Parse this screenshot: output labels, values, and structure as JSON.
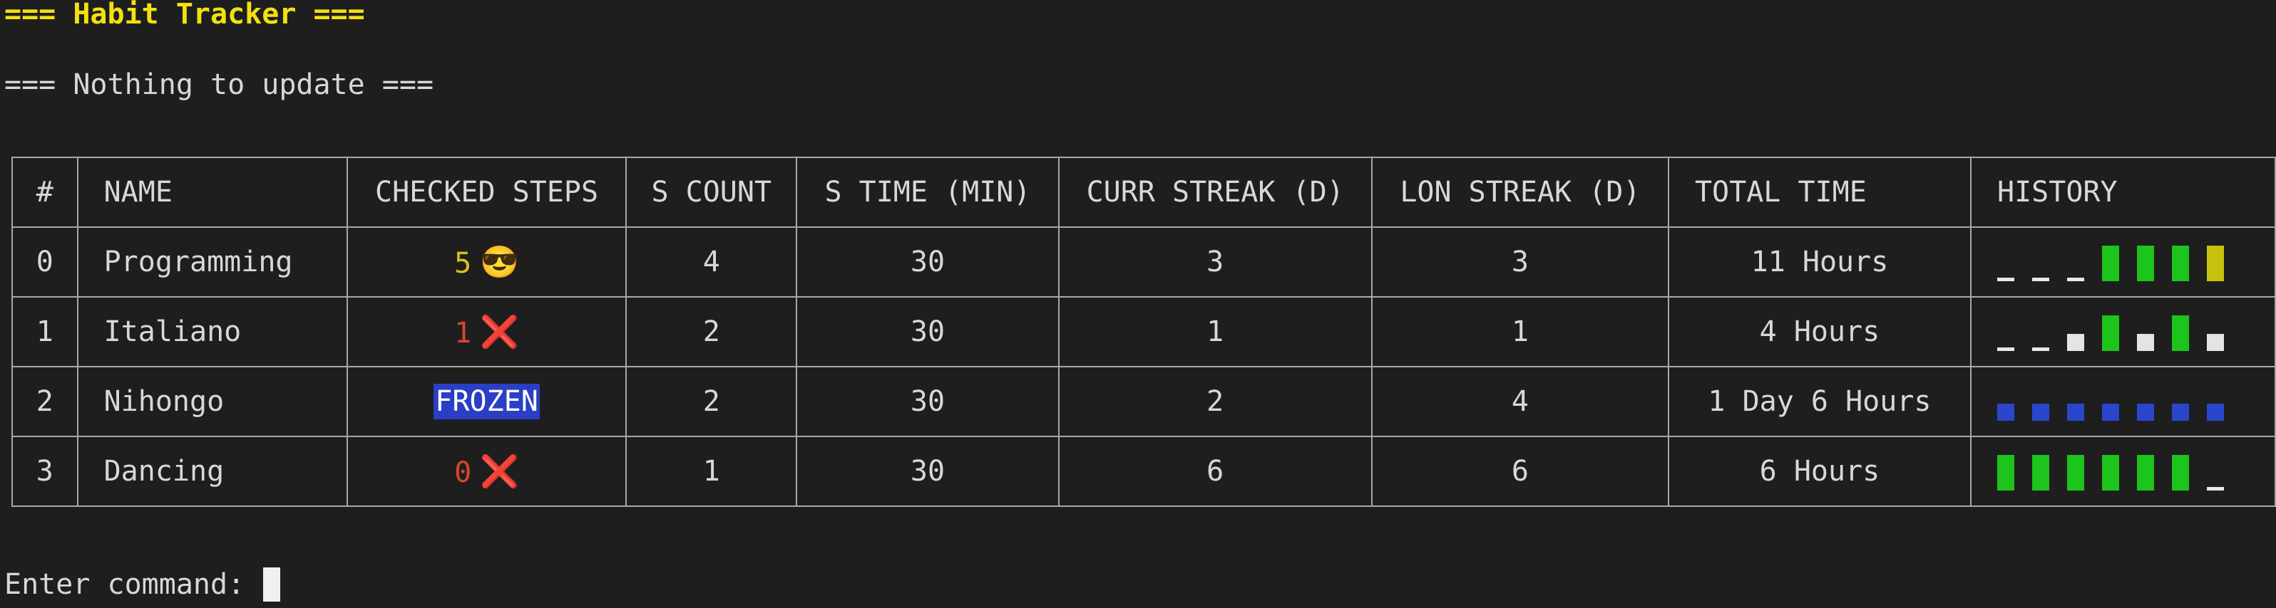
{
  "header": {
    "title": "=== Habit Tracker ===",
    "message": "=== Nothing to update ==="
  },
  "table": {
    "columns": [
      "#",
      "NAME",
      "CHECKED STEPS",
      "S COUNT",
      "S TIME (MIN)",
      "CURR STREAK (D)",
      "LON STREAK (D)",
      "TOTAL TIME",
      "HISTORY"
    ],
    "rows": [
      {
        "index": "0",
        "name": "Programming",
        "checked_steps": "5",
        "status_icon": "sunglasses-emoji",
        "status_glyph": "😎",
        "step_count": "4",
        "step_time": "30",
        "curr_streak": "3",
        "lon_streak": "3",
        "total_time": "11 Hours",
        "history": [
          "none",
          "none",
          "none",
          "done",
          "done",
          "done",
          "partial"
        ]
      },
      {
        "index": "1",
        "name": "Italiano",
        "checked_steps": "1",
        "status_icon": "cross-mark-emoji",
        "status_glyph": "❌",
        "step_count": "2",
        "step_time": "30",
        "curr_streak": "1",
        "lon_streak": "1",
        "total_time": "4 Hours",
        "history": [
          "none",
          "none",
          "missed",
          "done",
          "missed",
          "done",
          "missed"
        ]
      },
      {
        "index": "2",
        "name": "Nihongo",
        "checked_steps": "FROZEN",
        "step_count": "2",
        "step_time": "30",
        "curr_streak": "2",
        "lon_streak": "4",
        "total_time": "1 Day 6 Hours",
        "history": [
          "frozen",
          "frozen",
          "frozen",
          "frozen",
          "frozen",
          "frozen",
          "frozen"
        ]
      },
      {
        "index": "3",
        "name": "Dancing",
        "checked_steps": "0",
        "status_icon": "cross-mark-emoji",
        "status_glyph": "❌",
        "step_count": "1",
        "step_time": "30",
        "curr_streak": "6",
        "lon_streak": "6",
        "total_time": "6 Hours",
        "history": [
          "done",
          "done",
          "done",
          "done",
          "done",
          "done",
          "none"
        ]
      }
    ]
  },
  "prompt": {
    "label": "Enter command: "
  },
  "colors": {
    "background": "#1e1e1e",
    "title": "#f2e10f",
    "done": "#1cc41c",
    "partial": "#c6c20e",
    "frozen": "#2a46cc",
    "fail_text": "#d9462b",
    "success_text": "#d6c219"
  }
}
